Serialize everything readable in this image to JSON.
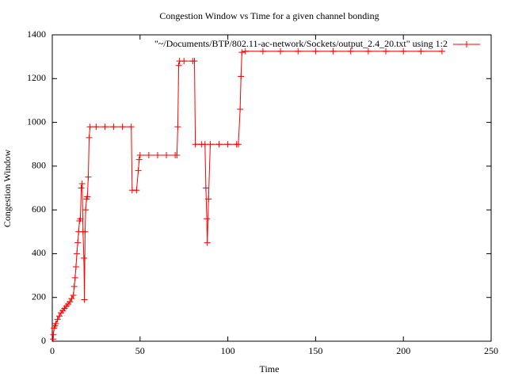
{
  "chart_data": {
    "type": "line",
    "title": "Congestion Window vs Time for a given channel bonding",
    "x_label": "Time",
    "y_label": "Congestion Window",
    "xlim": [
      0,
      250
    ],
    "xticks": [
      0,
      50,
      100,
      150,
      200,
      250
    ],
    "ylim": [
      0,
      1400
    ],
    "yticks": [
      0,
      200,
      400,
      600,
      800,
      1000,
      1200,
      1400
    ],
    "legend": "top-right",
    "series": [
      {
        "name": "\"~/Documents/BTP/802.11-ac-network/Sockets/output_2.4_20.txt\" using 1:2",
        "color": "#ff0000",
        "marker": "+",
        "x": [
          0.5,
          0.6,
          1,
          1.5,
          2,
          3,
          4,
          5,
          6,
          7,
          8,
          9,
          10,
          11,
          12,
          12.5,
          13,
          13.5,
          14,
          14.5,
          15,
          15.5,
          16,
          16.5,
          17,
          17.5,
          18,
          18.3,
          18.7,
          19,
          19.5,
          20,
          20.5,
          21,
          21.5,
          25,
          30,
          35,
          40,
          45,
          45.5,
          48,
          49,
          49.5,
          50,
          55,
          60,
          65,
          70,
          71,
          71.5,
          72,
          72.5,
          75,
          80,
          81,
          81.5,
          85,
          87,
          87.5,
          88,
          88.3,
          89,
          90,
          95,
          100,
          105,
          106,
          107,
          107.5,
          108,
          110,
          120,
          130,
          140,
          150,
          160,
          170,
          180,
          190,
          200,
          210,
          222
        ],
        "values": [
          10,
          30,
          60,
          70,
          80,
          100,
          115,
          130,
          140,
          150,
          160,
          170,
          180,
          195,
          210,
          250,
          290,
          340,
          400,
          450,
          500,
          550,
          560,
          700,
          720,
          500,
          380,
          190,
          500,
          600,
          650,
          660,
          750,
          930,
          980,
          980,
          980,
          980,
          980,
          980,
          690,
          690,
          780,
          830,
          850,
          850,
          850,
          850,
          850,
          850,
          980,
          1260,
          1280,
          1280,
          1280,
          1280,
          900,
          900,
          900,
          700,
          560,
          450,
          650,
          900,
          900,
          900,
          900,
          900,
          1060,
          1210,
          1320,
          1325,
          1325,
          1325,
          1325,
          1325,
          1325,
          1325,
          1325,
          1325,
          1325,
          1325,
          1325
        ]
      }
    ]
  }
}
